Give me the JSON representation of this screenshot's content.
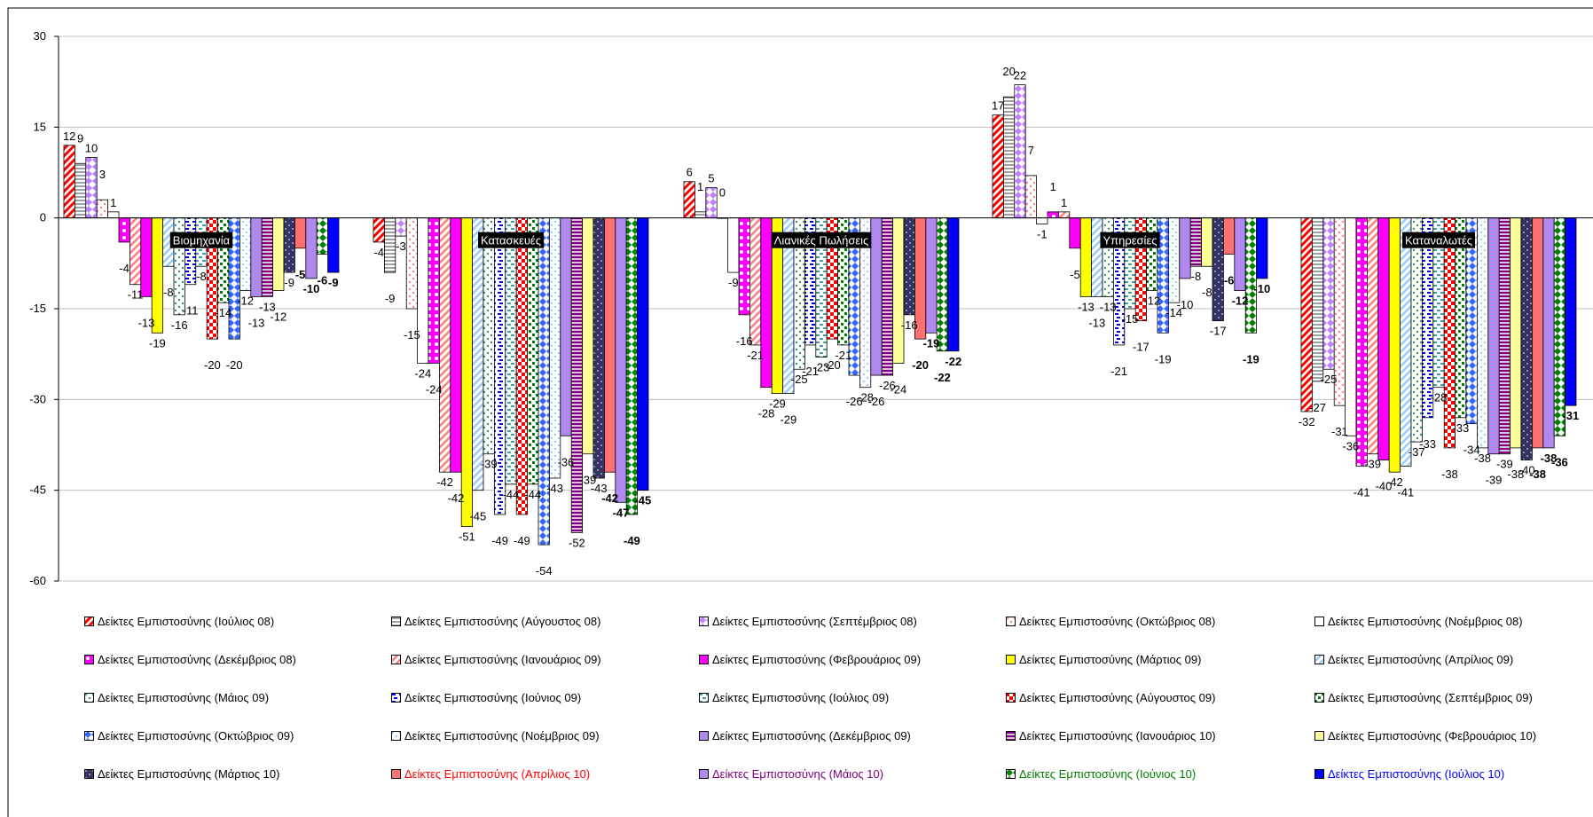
{
  "chart_data": {
    "type": "bar",
    "categories": [
      "Βιομηχανία",
      "Κατασκευές",
      "Λιανικές Πωλήσεις",
      "Υπηρεσίες",
      "Καταναλωτές"
    ],
    "ylim": [
      -60,
      30
    ],
    "yticks": [
      30,
      15,
      0,
      -15,
      -30,
      -45,
      -60
    ],
    "grid": true,
    "legend_position": "bottom",
    "series": [
      {
        "name": "Δείκτες Εμπιστοσύνης (Ιούλιος 08)",
        "color": "#ff0000",
        "pattern": "diag-stripe",
        "values": [
          12,
          -4,
          6,
          17,
          -32
        ]
      },
      {
        "name": "Δείκτες Εμπιστοσύνης (Αύγουστος 08)",
        "color": "#808080",
        "pattern": "hlines",
        "values": [
          9,
          -9,
          1,
          20,
          -27
        ]
      },
      {
        "name": "Δείκτες Εμπιστοσύνης (Σεπτέμβριος 08)",
        "color": "#c080ff",
        "pattern": "diamonds",
        "values": [
          10,
          -3,
          5,
          22,
          -25
        ]
      },
      {
        "name": "Δείκτες Εμπιστοσύνης (Οκτώβριος 08)",
        "color": "#ff8080",
        "pattern": "dots",
        "values": [
          3,
          -15,
          0,
          7,
          -31
        ]
      },
      {
        "name": "Δείκτες Εμπιστοσύνης (Νοέμβριος 08)",
        "color": "#008000",
        "pattern": "hollow",
        "values": [
          1,
          -24,
          -9,
          -1,
          -36
        ]
      },
      {
        "name": "Δείκτες Εμπιστοσύνης (Δεκέμβριος 08)",
        "color": "#ff00ff",
        "pattern": "circles",
        "values": [
          -4,
          -24,
          -16,
          1,
          -41
        ]
      },
      {
        "name": "Δείκτες Εμπιστοσύνης (Ιανουάριος 09)",
        "color": "#ff8080",
        "pattern": "diag-stripe-light",
        "values": [
          -11,
          -42,
          -21,
          1,
          -39
        ]
      },
      {
        "name": "Δείκτες Εμπιστοσύνης (Φεβρουάριος 09)",
        "color": "#ff00ff",
        "pattern": "solid",
        "values": [
          -13,
          -42,
          -28,
          -5,
          -40
        ]
      },
      {
        "name": "Δείκτες Εμπιστοσύνης (Μάρτιος 09)",
        "color": "#ffff00",
        "pattern": "solid",
        "values": [
          -19,
          -51,
          -29,
          -13,
          -42
        ]
      },
      {
        "name": "Δείκτες Εμπιστοσύνης (Απρίλιος 09)",
        "color": "#99ccff",
        "pattern": "diag-stripe-light",
        "values": [
          -8,
          -45,
          -29,
          -13,
          -41
        ]
      },
      {
        "name": "Δείκτες Εμπιστοσύνης (Μάιος 09)",
        "color": "#339966",
        "pattern": "dots-small",
        "values": [
          -16,
          -39,
          -25,
          -13,
          -37
        ]
      },
      {
        "name": "Δείκτες Εμπιστοσύνης (Ιούνιος 09)",
        "color": "#0000ff",
        "pattern": "dashes",
        "values": [
          -11,
          -49,
          -21,
          -21,
          -33
        ]
      },
      {
        "name": "Δείκτες Εμπιστοσύνης (Ιούλιος 09)",
        "color": "#008080",
        "pattern": "hdash",
        "values": [
          -8,
          -44,
          -23,
          -15,
          -28
        ]
      },
      {
        "name": "Δείκτες Εμπιστοσύνης (Αύγουστος 09)",
        "color": "#ff0000",
        "pattern": "checker",
        "values": [
          -20,
          -49,
          -20,
          -17,
          -38
        ]
      },
      {
        "name": "Δείκτες Εμπιστοσύνης (Σεπτέμβριος 09)",
        "color": "#008000",
        "pattern": "checker-small",
        "values": [
          -14,
          -44,
          -21,
          -12,
          -33
        ]
      },
      {
        "name": "Δείκτες Εμπιστοσύνης (Οκτώβριος 09)",
        "color": "#3366ff",
        "pattern": "diamonds",
        "values": [
          -20,
          -54,
          -26,
          -19,
          -34
        ]
      },
      {
        "name": "Δείκτες Εμπιστοσύνης (Νοέμβριος 09)",
        "color": "#99ccff",
        "pattern": "dots-light",
        "values": [
          -12,
          -43,
          -28,
          -14,
          -38
        ]
      },
      {
        "name": "Δείκτες Εμπιστοσύνης (Δεκέμβριος 09)",
        "color": "#b088ee",
        "pattern": "solid",
        "values": [
          -13,
          -36,
          -26,
          -10,
          -39
        ]
      },
      {
        "name": "Δείκτες Εμπιστοσύνης (Ιανουάριος 10)",
        "color": "#800080",
        "pattern": "hstripes",
        "values": [
          -13,
          -52,
          -26,
          -8,
          -39
        ]
      },
      {
        "name": "Δείκτες Εμπιστοσύνης (Φεβρουάριος 10)",
        "color": "#ffff99",
        "pattern": "solid",
        "values": [
          -12,
          -39,
          -24,
          -8,
          -38
        ]
      },
      {
        "name": "Δείκτες Εμπιστοσύνης (Μάρτιος 10)",
        "color": "#333366",
        "pattern": "dots-dark",
        "values": [
          -9,
          -43,
          -16,
          -17,
          -40
        ]
      },
      {
        "name": "Δείκτες Εμπιστοσύνης (Απρίλιος 10)",
        "color": "#ff7070",
        "pattern": "solid",
        "values": [
          -5,
          -42,
          -20,
          -6,
          -38
        ]
      },
      {
        "name": "Δείκτες Εμπιστοσύνης (Μάιος 10)",
        "color": "#b088ee",
        "pattern": "solid",
        "values": [
          -10,
          -47,
          -19,
          -12,
          -38
        ]
      },
      {
        "name": "Δείκτες Εμπιστοσύνης (Ιούνιος 10)",
        "color": "#008000",
        "pattern": "diamonds-dark",
        "values": [
          -6,
          -49,
          -22,
          -19,
          -36
        ]
      },
      {
        "name": "Δείκτες Εμπιστοσύνης (Ιούλιος 10)",
        "color": "#0000ff",
        "pattern": "solid-blue",
        "values": [
          -9,
          -45,
          -22,
          -10,
          -31
        ]
      }
    ],
    "value_label_colors": {
      "Δείκτες Εμπιστοσύνης (Απρίλιος 10)": "#ff0000",
      "Δείκτες Εμπιστοσύνης (Μάιος 10)": "#800080",
      "Δείκτες Εμπιστοσύνης (Ιούνιος 10)": "#008000",
      "Δείκτες Εμπιστοσύνης (Ιούλιος 10)": "#0000ff"
    }
  }
}
